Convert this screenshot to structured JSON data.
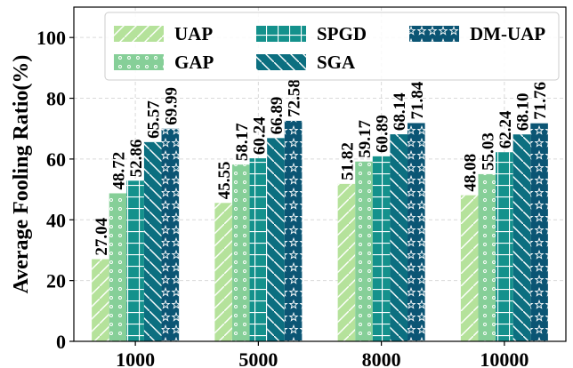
{
  "chart_data": {
    "type": "bar",
    "title": "",
    "xlabel": "",
    "ylabel": "Average Fooling Ratio(%)",
    "ylim": [
      0,
      110
    ],
    "yticks": [
      0,
      20,
      40,
      60,
      80,
      100
    ],
    "grid": true,
    "legend_position": "top",
    "categories": [
      "1000",
      "5000",
      "8000",
      "10000"
    ],
    "series": [
      {
        "name": "UAP",
        "color": "#b5e29b",
        "pattern": "diagonal",
        "values": [
          27.04,
          45.55,
          51.82,
          48.08
        ],
        "labels": [
          "27.04",
          "45.55",
          "51.82",
          "48.08"
        ]
      },
      {
        "name": "GAP",
        "color": "#86cf98",
        "pattern": "dots",
        "values": [
          48.72,
          58.17,
          59.17,
          55.03
        ],
        "labels": [
          "48.72",
          "58.17",
          "59.17",
          "55.03"
        ]
      },
      {
        "name": "SPGD",
        "color": "#14918c",
        "pattern": "grid",
        "values": [
          52.86,
          60.24,
          60.89,
          62.24
        ],
        "labels": [
          "52.86",
          "60.24",
          "60.89",
          "62.24"
        ]
      },
      {
        "name": "SGA",
        "color": "#0c6f80",
        "pattern": "backslash",
        "values": [
          65.57,
          66.89,
          68.14,
          68.1
        ],
        "labels": [
          "65.57",
          "66.89",
          "68.14",
          "68.10"
        ]
      },
      {
        "name": "DM-UAP",
        "color": "#0b5574",
        "pattern": "stars",
        "values": [
          69.99,
          72.58,
          71.84,
          71.76
        ],
        "labels": [
          "69.99",
          "72.58",
          "71.84",
          "71.76"
        ]
      }
    ]
  }
}
